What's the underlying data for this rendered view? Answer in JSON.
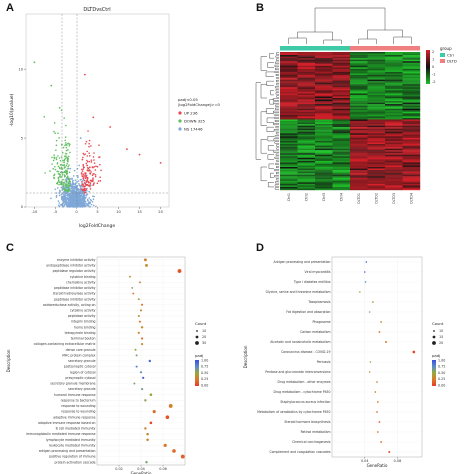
{
  "panels": {
    "a": "A",
    "b": "B",
    "c": "C",
    "d": "D"
  },
  "volcano": {
    "title": "DLTDvsCtrl",
    "xlabel": "log2FoldChange",
    "ylabel": "-log10(pvalue)",
    "xticks": [
      "-10",
      "-5",
      "0",
      "5",
      "10",
      "15",
      "20"
    ],
    "yticks": [
      "0",
      "5",
      "10"
    ],
    "legend_title_1": "padj<0.05",
    "legend_title_2": "|log2FoldChange|>=0",
    "legend": [
      {
        "label": "UP 236",
        "color": "#e8484f"
      },
      {
        "label": "DOWN 325",
        "color": "#5fbf5f"
      },
      {
        "label": "NS 17446",
        "color": "#7fa8d8"
      }
    ],
    "colors": {
      "up": "#e8484f",
      "down": "#5fbf5f",
      "ns": "#7fa8d8"
    }
  },
  "heatmap": {
    "legend_title": "group",
    "groups": [
      {
        "label": "Ctrl",
        "color": "#3ec9a7"
      },
      {
        "label": "DLTD",
        "color": "#f08080"
      }
    ],
    "scale_ticks": [
      "2",
      "1",
      "0",
      "-1",
      "-2"
    ],
    "columns": [
      "Ctrl1",
      "Ctrl2",
      "Ctrl3",
      "Ctrl4",
      "DLTD1",
      "DLTD2",
      "DLTD3",
      "DLTD4"
    ],
    "colors": {
      "high": "#d8202a",
      "mid": "#111111",
      "low": "#1fbf2a"
    }
  },
  "chart_data": [
    {
      "panel": "C",
      "type": "scatter",
      "xlabel": "GeneRatio",
      "ylabel": "Description",
      "xticks": [
        "0.02",
        "0.04",
        "0.06"
      ],
      "xlim": [
        0.0,
        0.08
      ],
      "size_legend_title": "Count",
      "size_legend": [
        "10",
        "20",
        "30"
      ],
      "color_legend_title": "padj",
      "color_legend": [
        "1.00",
        "0.75",
        "0.50",
        "0.25",
        "0.00"
      ],
      "categories": [
        "enzyme inhibitor activity",
        "endopeptidase inhibitor activity",
        "peptidase regulator activity",
        "cytokine binding",
        "chemokine activity",
        "peptidase inhibitor activity",
        "steroid hydroxylase activity",
        "peptidase inhibitor activity",
        "oxidoreductase activity, acting on",
        "cytokine activity",
        "peptidase activity",
        "integrin binding",
        "heme binding",
        "tetrapyrrole binding",
        "terminal bouton",
        "collagen-containing extracellular matrix",
        "dense core granule",
        "MHC protein complex",
        "secretory granule",
        "postsynaptic cytosol",
        "region of cytosol",
        "presynaptic cytosol",
        "secretory granule membrane",
        "secretory granule",
        "humoral immune response",
        "response to bacterium",
        "response to wounding",
        "response to wounding",
        "adaptive immune response",
        "adaptive immune response based on",
        "B cell mediated immunity",
        "immunoglobulin mediated immune response",
        "lymphocyte mediated immunity",
        "leukocyte mediated immunity",
        "antigen processing and presentation",
        "positive regulation of immune",
        "protein activation cascade"
      ],
      "values": [
        0.044,
        0.045,
        0.075,
        0.03,
        0.039,
        0.032,
        0.033,
        0.038,
        0.041,
        0.04,
        0.038,
        0.039,
        0.041,
        0.038,
        0.041,
        0.041,
        0.035,
        0.036,
        0.048,
        0.036,
        0.04,
        0.042,
        0.034,
        0.041,
        0.049,
        0.044,
        0.067,
        0.052,
        0.064,
        0.049,
        0.044,
        0.046,
        0.046,
        0.062,
        0.07,
        0.078,
        0.045
      ],
      "counts": [
        22,
        22,
        30,
        14,
        14,
        13,
        14,
        14,
        15,
        16,
        15,
        16,
        18,
        16,
        16,
        16,
        15,
        15,
        18,
        15,
        16,
        16,
        14,
        16,
        20,
        18,
        30,
        24,
        28,
        20,
        18,
        19,
        19,
        25,
        28,
        30,
        18
      ],
      "padj": [
        0.3,
        0.35,
        0.1,
        0.4,
        0.3,
        0.6,
        0.25,
        0.45,
        0.2,
        0.35,
        0.4,
        0.25,
        0.35,
        0.3,
        0.2,
        0.35,
        0.5,
        0.6,
        0.9,
        0.8,
        0.7,
        0.95,
        0.6,
        0.65,
        0.5,
        0.55,
        0.3,
        0.2,
        0.1,
        0.05,
        0.3,
        0.35,
        0.35,
        0.25,
        0.2,
        0.15,
        0.6
      ]
    },
    {
      "panel": "D",
      "type": "scatter",
      "xlabel": "GeneRatio",
      "ylabel": "Description",
      "xticks": [
        "0.04",
        "0.08"
      ],
      "xlim": [
        0.0,
        0.11
      ],
      "size_legend_title": "Count",
      "size_legend": [
        "10",
        "15",
        "20"
      ],
      "color_legend_title": "padj",
      "color_legend": [
        "1.00",
        "0.75",
        "0.50",
        "0.25",
        "0.00"
      ],
      "categories": [
        "Antigen processing and presentation",
        "Viral myocarditis",
        "Type I diabetes mellitus",
        "Glycine, serine and threonine metabolism",
        "Toxoplasmosis",
        "Fat digestion and absorption",
        "Phagosome",
        "Carbon metabolism",
        "Alcoholic and nonalcoholic metabolism",
        "Coronavirus disease - COVID-19",
        "Pertussis",
        "Pentose and glucuronate interconversions",
        "Drug metabolism - other enzymes",
        "Drug metabolism - cytochrome P450",
        "Staphylococcus aureus infection",
        "Metabolism of xenobiotics by cytochrome P450",
        "Steroid hormone biosynthesis",
        "Retinol metabolism",
        "Chemical carcinogenesis",
        "Complement and coagulation cascades"
      ],
      "values": [
        0.042,
        0.04,
        0.041,
        0.034,
        0.05,
        0.046,
        0.06,
        0.058,
        0.066,
        0.1,
        0.047,
        0.046,
        0.055,
        0.053,
        0.056,
        0.055,
        0.058,
        0.056,
        0.06,
        0.07
      ],
      "counts": [
        11,
        10,
        10,
        9,
        12,
        10,
        13,
        13,
        14,
        20,
        10,
        10,
        12,
        12,
        12,
        12,
        13,
        12,
        13,
        15
      ],
      "padj": [
        0.95,
        0.9,
        0.8,
        0.5,
        0.4,
        0.6,
        0.3,
        0.2,
        0.25,
        0.05,
        0.45,
        0.4,
        0.35,
        0.3,
        0.25,
        0.2,
        0.15,
        0.25,
        0.2,
        0.1
      ]
    }
  ]
}
